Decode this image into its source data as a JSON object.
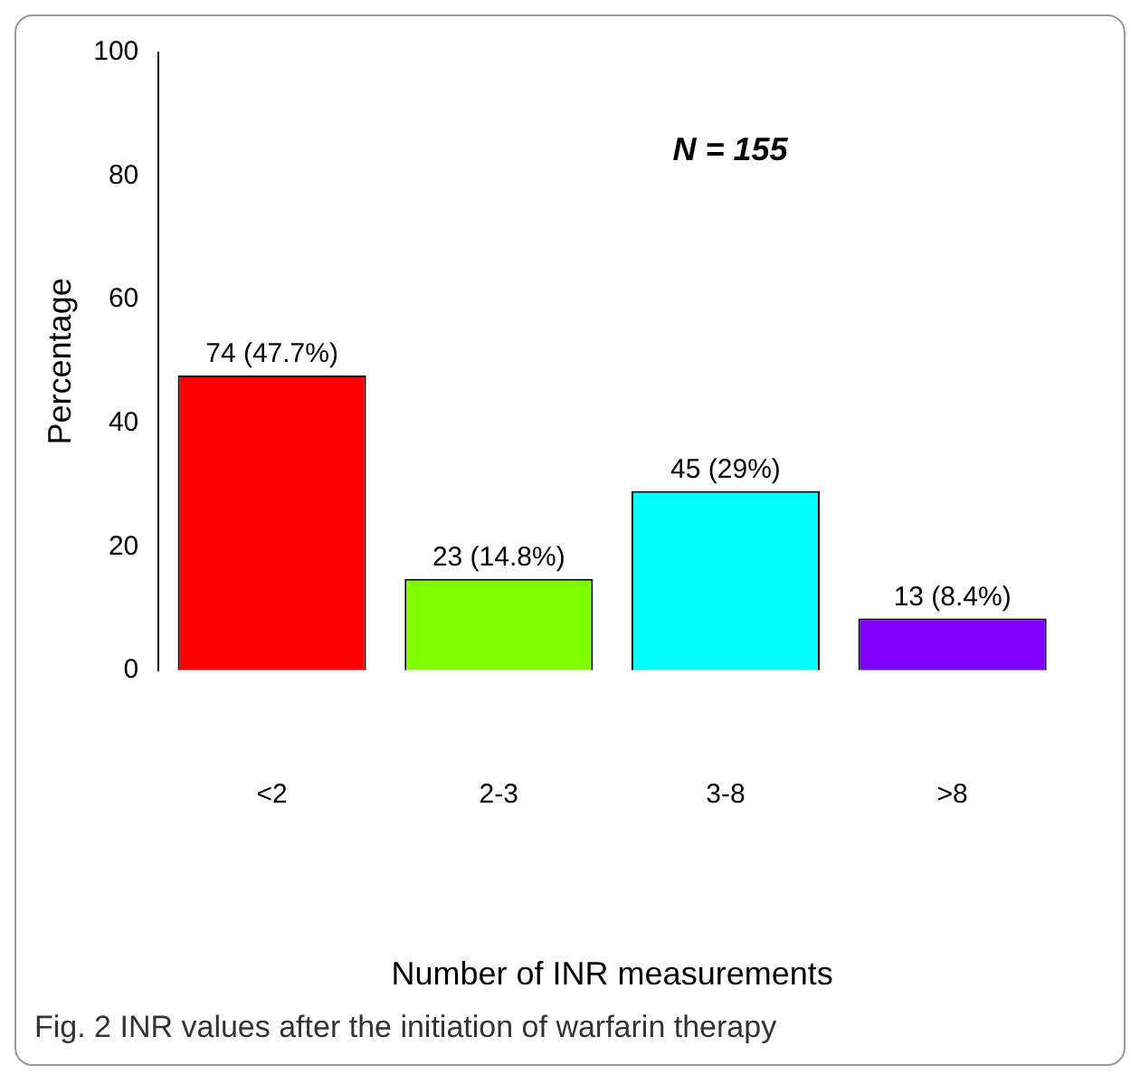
{
  "chart_data": {
    "type": "bar",
    "xlabel": "Number of INR measurements",
    "ylabel": "Percentage",
    "categories": [
      "<2",
      "2-3",
      "3-8",
      ">8"
    ],
    "values": [
      47.7,
      14.8,
      29,
      8.4
    ],
    "colors": [
      "#ff0000",
      "#80ff00",
      "#00ffff",
      "#8000ff"
    ],
    "value_labels": [
      "74 (47.7%)",
      "23 (14.8%)",
      "45 (29%)",
      "13 (8.4%)"
    ],
    "ylim": [
      0,
      100
    ],
    "yticks": [
      0,
      20,
      40,
      60,
      80,
      100
    ],
    "annotations": [
      "N = 155",
      "Fig. 2 INR values after the initiation of warfarin therapy"
    ]
  }
}
